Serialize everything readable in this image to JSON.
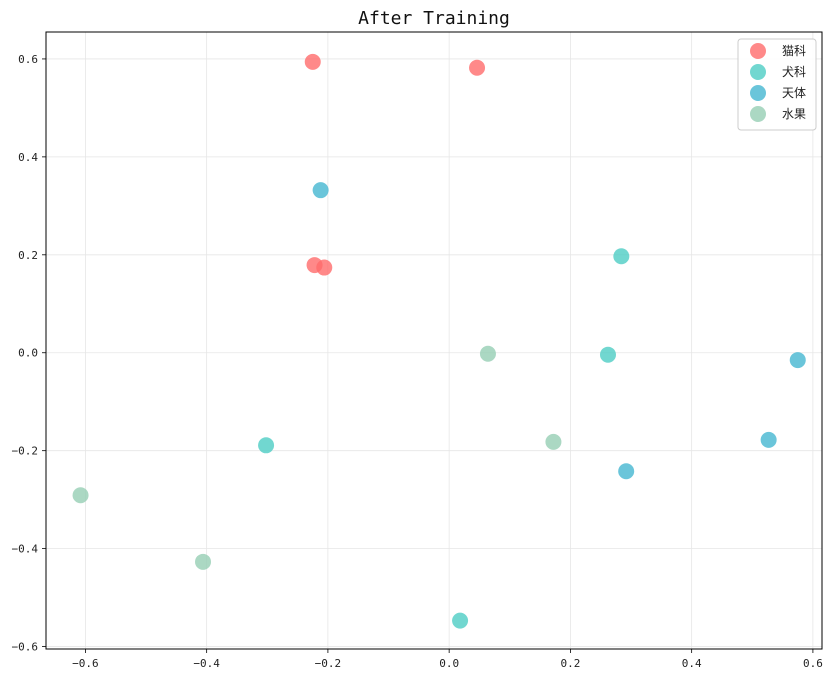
{
  "chart_data": {
    "type": "scatter",
    "title": "After Training",
    "xlabel": "",
    "ylabel": "",
    "xlim": [
      -0.665,
      0.615
    ],
    "ylim": [
      -0.605,
      0.655
    ],
    "xticks": [
      -0.6,
      -0.4,
      -0.2,
      0.0,
      0.2,
      0.4,
      0.6
    ],
    "yticks": [
      -0.6,
      -0.4,
      -0.2,
      0.0,
      0.2,
      0.4,
      0.6
    ],
    "xtick_labels": [
      "−0.6",
      "−0.4",
      "−0.2",
      "0.0",
      "0.2",
      "0.4",
      "0.6"
    ],
    "ytick_labels": [
      "−0.6",
      "−0.4",
      "−0.2",
      "0.0",
      "0.2",
      "0.4",
      "0.6"
    ],
    "grid": true,
    "legend_position": "top-right",
    "series": [
      {
        "name": "猫科",
        "color": "#FF6B6B",
        "points": [
          [
            -0.225,
            0.594
          ],
          [
            0.046,
            0.582
          ],
          [
            -0.222,
            0.179
          ],
          [
            -0.206,
            0.174
          ]
        ]
      },
      {
        "name": "犬科",
        "color": "#4ECDC4",
        "points": [
          [
            0.284,
            0.197
          ],
          [
            0.262,
            -0.004
          ],
          [
            -0.302,
            -0.189
          ],
          [
            0.018,
            -0.547
          ]
        ]
      },
      {
        "name": "天体",
        "color": "#45B7D1",
        "points": [
          [
            -0.212,
            0.332
          ],
          [
            0.575,
            -0.015
          ],
          [
            0.527,
            -0.178
          ],
          [
            0.292,
            -0.242
          ]
        ]
      },
      {
        "name": "水果",
        "color": "#96CEB4",
        "points": [
          [
            0.064,
            -0.002
          ],
          [
            0.172,
            -0.182
          ],
          [
            -0.608,
            -0.291
          ],
          [
            -0.406,
            -0.427
          ]
        ]
      }
    ]
  }
}
